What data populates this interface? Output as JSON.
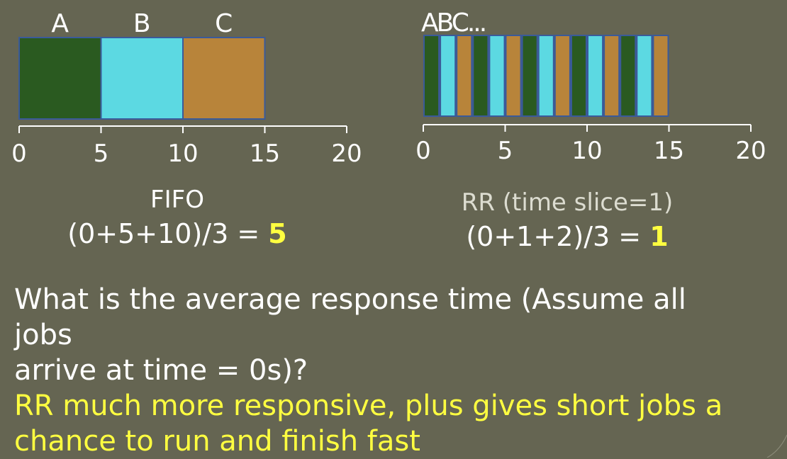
{
  "fifo": {
    "jobs": [
      {
        "label": "A",
        "start": 0,
        "end": 5,
        "color": "#2a5a20"
      },
      {
        "label": "B",
        "start": 5,
        "end": 10,
        "color": "#5cd9e2"
      },
      {
        "label": "C",
        "start": 10,
        "end": 15,
        "color": "#b8843a"
      }
    ],
    "axis": {
      "min": 0,
      "max": 20,
      "ticks": [
        "0",
        "5",
        "10",
        "15",
        "20"
      ]
    },
    "title": "FIFO",
    "formula": "(0+5+10)/3 = ",
    "result": "5"
  },
  "rr": {
    "label": "ABC...",
    "time_slice": 1,
    "sequence": [
      "A",
      "B",
      "C",
      "A",
      "B",
      "C",
      "A",
      "B",
      "C",
      "A",
      "B",
      "C",
      "A",
      "B",
      "C"
    ],
    "job_colors": {
      "A": "#2a5a20",
      "B": "#5cd9e2",
      "C": "#b8843a"
    },
    "axis": {
      "min": 0,
      "max": 20,
      "ticks": [
        "0",
        "5",
        "10",
        "15",
        "20"
      ]
    },
    "title": "RR (time slice=1)",
    "formula": "(0+1+2)/3 = ",
    "result": "1"
  },
  "question": {
    "line1": "What is the average response time (Assume all",
    "line2": "jobs",
    "line3": "arrive at time = 0s)?"
  },
  "answer": {
    "line1": "RR much more responsive, plus gives short jobs a",
    "line2": "chance to run and finish fast"
  },
  "colors": {
    "background": "#656552",
    "highlight": "#ffff40",
    "outline": "#3a5a9a"
  }
}
